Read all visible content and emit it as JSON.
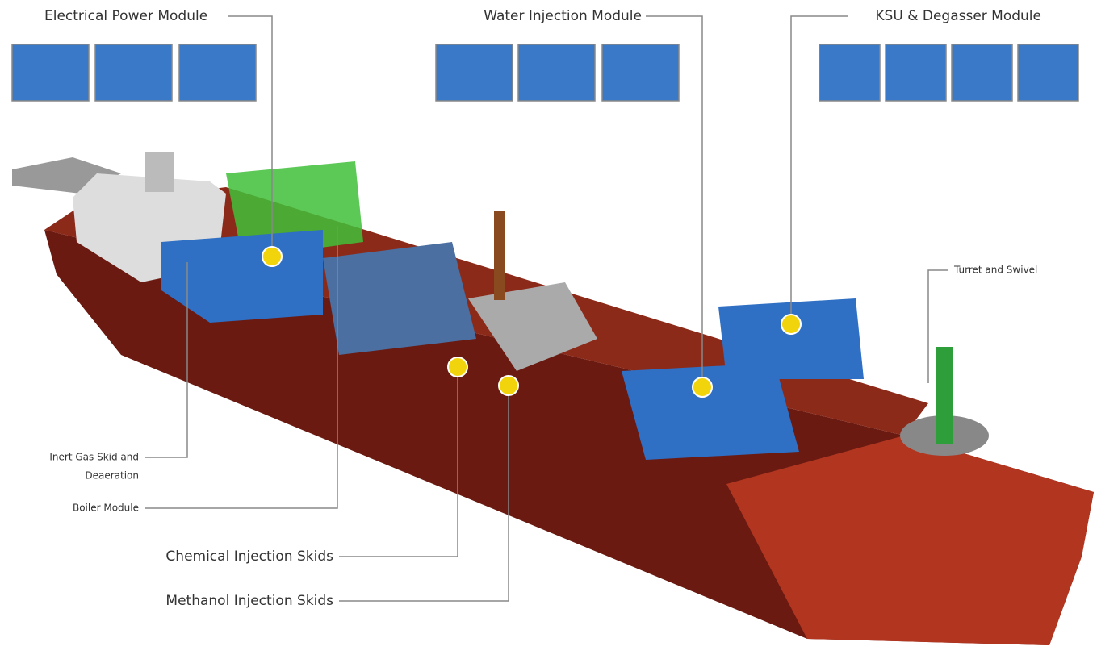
{
  "callouts": [
    {
      "lines": [
        "Electrical Power Module"
      ]
    },
    {
      "lines": [
        "Water Injection Module"
      ]
    },
    {
      "lines": [
        "KSU & Degasser Module"
      ]
    },
    {
      "lines": [
        "Turret and Swivel"
      ]
    },
    {
      "lines": [
        "Inert Gas Skid and",
        "Deaeration"
      ]
    },
    {
      "lines": [
        "Boiler Module"
      ]
    },
    {
      "lines": [
        "Chemical Injection Skids"
      ]
    },
    {
      "lines": [
        "Methanol Injection Skids"
      ]
    }
  ]
}
